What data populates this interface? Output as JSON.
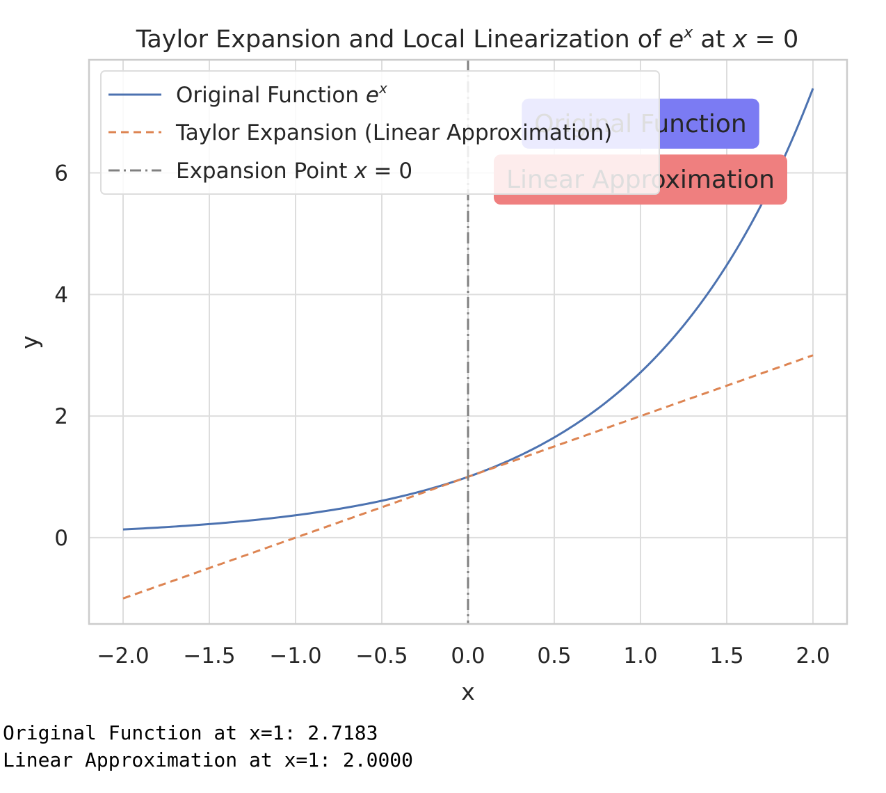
{
  "chart_data": {
    "type": "line",
    "title_prefix": "Taylor Expansion and Local Linearization of ",
    "title_base": "e",
    "title_sup": "x",
    "title_mid": " at ",
    "title_var": "x",
    "title_suffix": " = 0",
    "xlabel": "x",
    "ylabel": "y",
    "xlim": [
      -2.0,
      2.0
    ],
    "ylim": [
      -1.42,
      7.86
    ],
    "x_ticks": [
      -2.0,
      -1.5,
      -1.0,
      -0.5,
      0.0,
      0.5,
      1.0,
      1.5,
      2.0
    ],
    "x_tick_labels": [
      "−2.0",
      "−1.5",
      "−1.0",
      "−0.5",
      "0.0",
      "0.5",
      "1.0",
      "1.5",
      "2.0"
    ],
    "y_ticks": [
      0,
      2,
      4,
      6
    ],
    "y_tick_labels": [
      "0",
      "2",
      "4",
      "6"
    ],
    "grid": true,
    "legend_position": "upper-left",
    "series": [
      {
        "name_text": "Original Function ",
        "name_math_base": "e",
        "name_math_sup": "x",
        "function": "exp(x)",
        "x_range": [
          -2.0,
          2.0
        ],
        "color": "#4c72b0",
        "line_style": "solid"
      },
      {
        "name_text": "Taylor Expansion (Linear Approximation)",
        "function": "1 + x",
        "x_range": [
          -2.0,
          2.0
        ],
        "color": "#dd8452",
        "line_style": "dashed"
      },
      {
        "name_text": "Expansion Point ",
        "name_math_var": "x",
        "name_math_tail": " = 0",
        "vertical_line_x": 0,
        "color": "#808080",
        "line_style": "dashdot"
      }
    ],
    "annotations": [
      {
        "text": "Original Function",
        "anchor_x": 1.0,
        "anchor_y": 6.81,
        "box_color": "#7b7bf3"
      },
      {
        "text": "Linear Approximation",
        "anchor_x": 1.0,
        "anchor_y": 5.89,
        "box_color": "#ef7f7f"
      }
    ]
  },
  "output_lines": [
    "Original Function at x=1: 2.7183",
    "Linear Approximation at x=1: 2.0000"
  ]
}
